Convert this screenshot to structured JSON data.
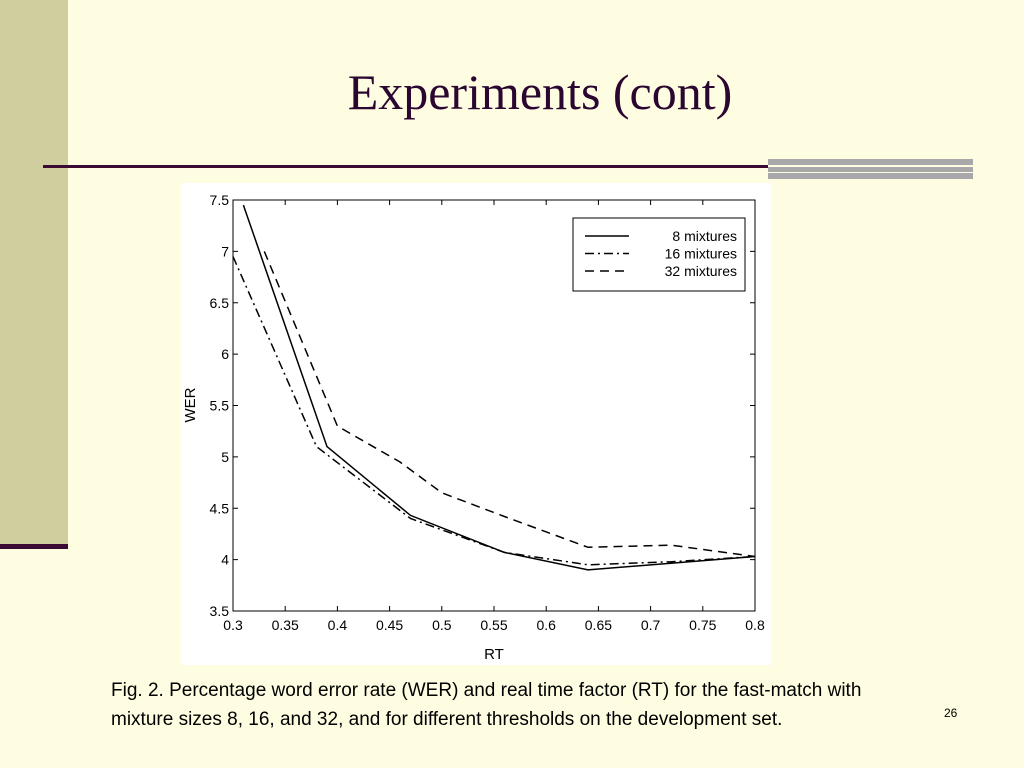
{
  "slide": {
    "title": "Experiments (cont)",
    "caption": "Fig. 2. Percentage word error rate (WER) and real time factor (RT) for the fast-match with mixture sizes 8, 16, and 32, and for different thresholds on the development set.",
    "slide_number": "26"
  },
  "colors": {
    "background": "#fefde2",
    "left_band": "#d0cd9e",
    "title_text": "#2b0630",
    "rule": "#3a0a33",
    "accent_bar": "#a8a8aa"
  },
  "chart_data": {
    "type": "line",
    "xlabel": "RT",
    "ylabel": "WER",
    "xlim": [
      0.3,
      0.8
    ],
    "ylim": [
      3.5,
      7.5
    ],
    "x_ticks": [
      "0.3",
      "0.35",
      "0.4",
      "0.45",
      "0.5",
      "0.55",
      "0.6",
      "0.65",
      "0.7",
      "0.75",
      "0.8"
    ],
    "y_ticks": [
      "3.5",
      "4",
      "4.5",
      "5",
      "5.5",
      "6",
      "6.5",
      "7",
      "7.5"
    ],
    "grid": false,
    "legend_position": "top-right",
    "series": [
      {
        "name": "8 mixtures",
        "style": "solid",
        "x": [
          0.31,
          0.39,
          0.47,
          0.56,
          0.64,
          0.8
        ],
        "y": [
          7.45,
          5.1,
          4.43,
          4.07,
          3.9,
          4.03
        ]
      },
      {
        "name": "16 mixtures",
        "style": "dashdot",
        "x": [
          0.3,
          0.38,
          0.47,
          0.56,
          0.64,
          0.72,
          0.8
        ],
        "y": [
          6.95,
          5.1,
          4.4,
          4.07,
          3.95,
          3.98,
          4.03
        ]
      },
      {
        "name": "32 mixtures",
        "style": "dashed",
        "x": [
          0.33,
          0.4,
          0.46,
          0.5,
          0.56,
          0.64,
          0.72,
          0.8
        ],
        "y": [
          7.0,
          5.3,
          4.95,
          4.65,
          4.42,
          4.12,
          4.14,
          4.03
        ]
      }
    ]
  }
}
